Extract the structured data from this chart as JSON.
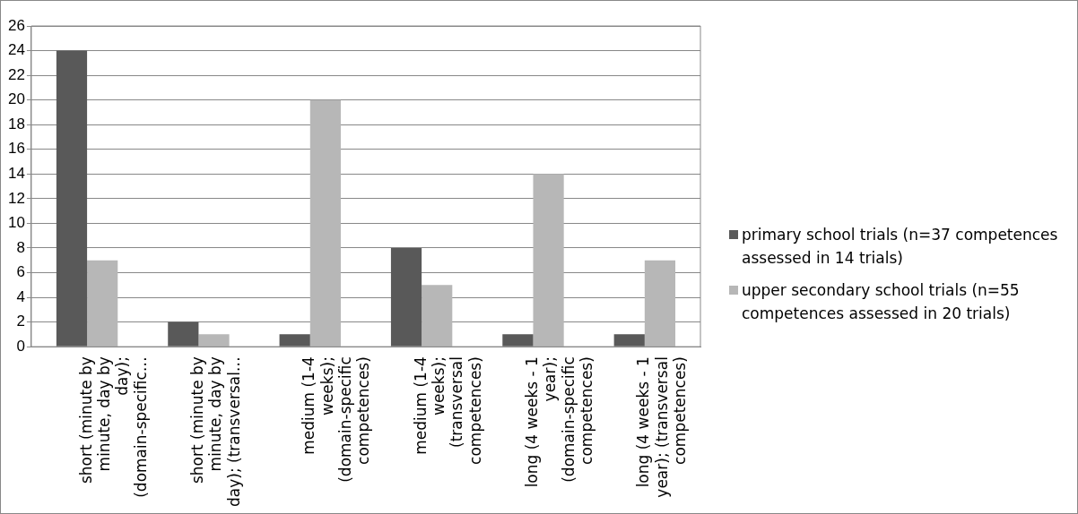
{
  "chart_data": {
    "type": "bar",
    "categories": [
      "short (minute by minute, day by day); (domain-specific…",
      "short (minute by minute, day by day); (transversal…",
      "medium (1-4 weeks); (domain-specific competences)",
      "medium (1-4 weeks); (transversal competences)",
      "long (4 weeks - 1 year); (domain-specific competences)",
      "long (4 weeks - 1 year); (transversal competences)"
    ],
    "series": [
      {
        "name": "primary school trials (n=37 competences assessed in 14 trials)",
        "color": "#595959",
        "values": [
          24,
          2,
          1,
          8,
          1,
          1
        ]
      },
      {
        "name": "upper secondary school trials (n=55 competences assessed in 20 trials)",
        "color": "#b7b7b7",
        "values": [
          7,
          1,
          20,
          5,
          14,
          7
        ]
      }
    ],
    "ylim": [
      0,
      26
    ],
    "yticks": [
      0,
      2,
      4,
      6,
      8,
      10,
      12,
      14,
      16,
      18,
      20,
      22,
      24,
      26
    ],
    "grid": "y",
    "legend": "right"
  }
}
